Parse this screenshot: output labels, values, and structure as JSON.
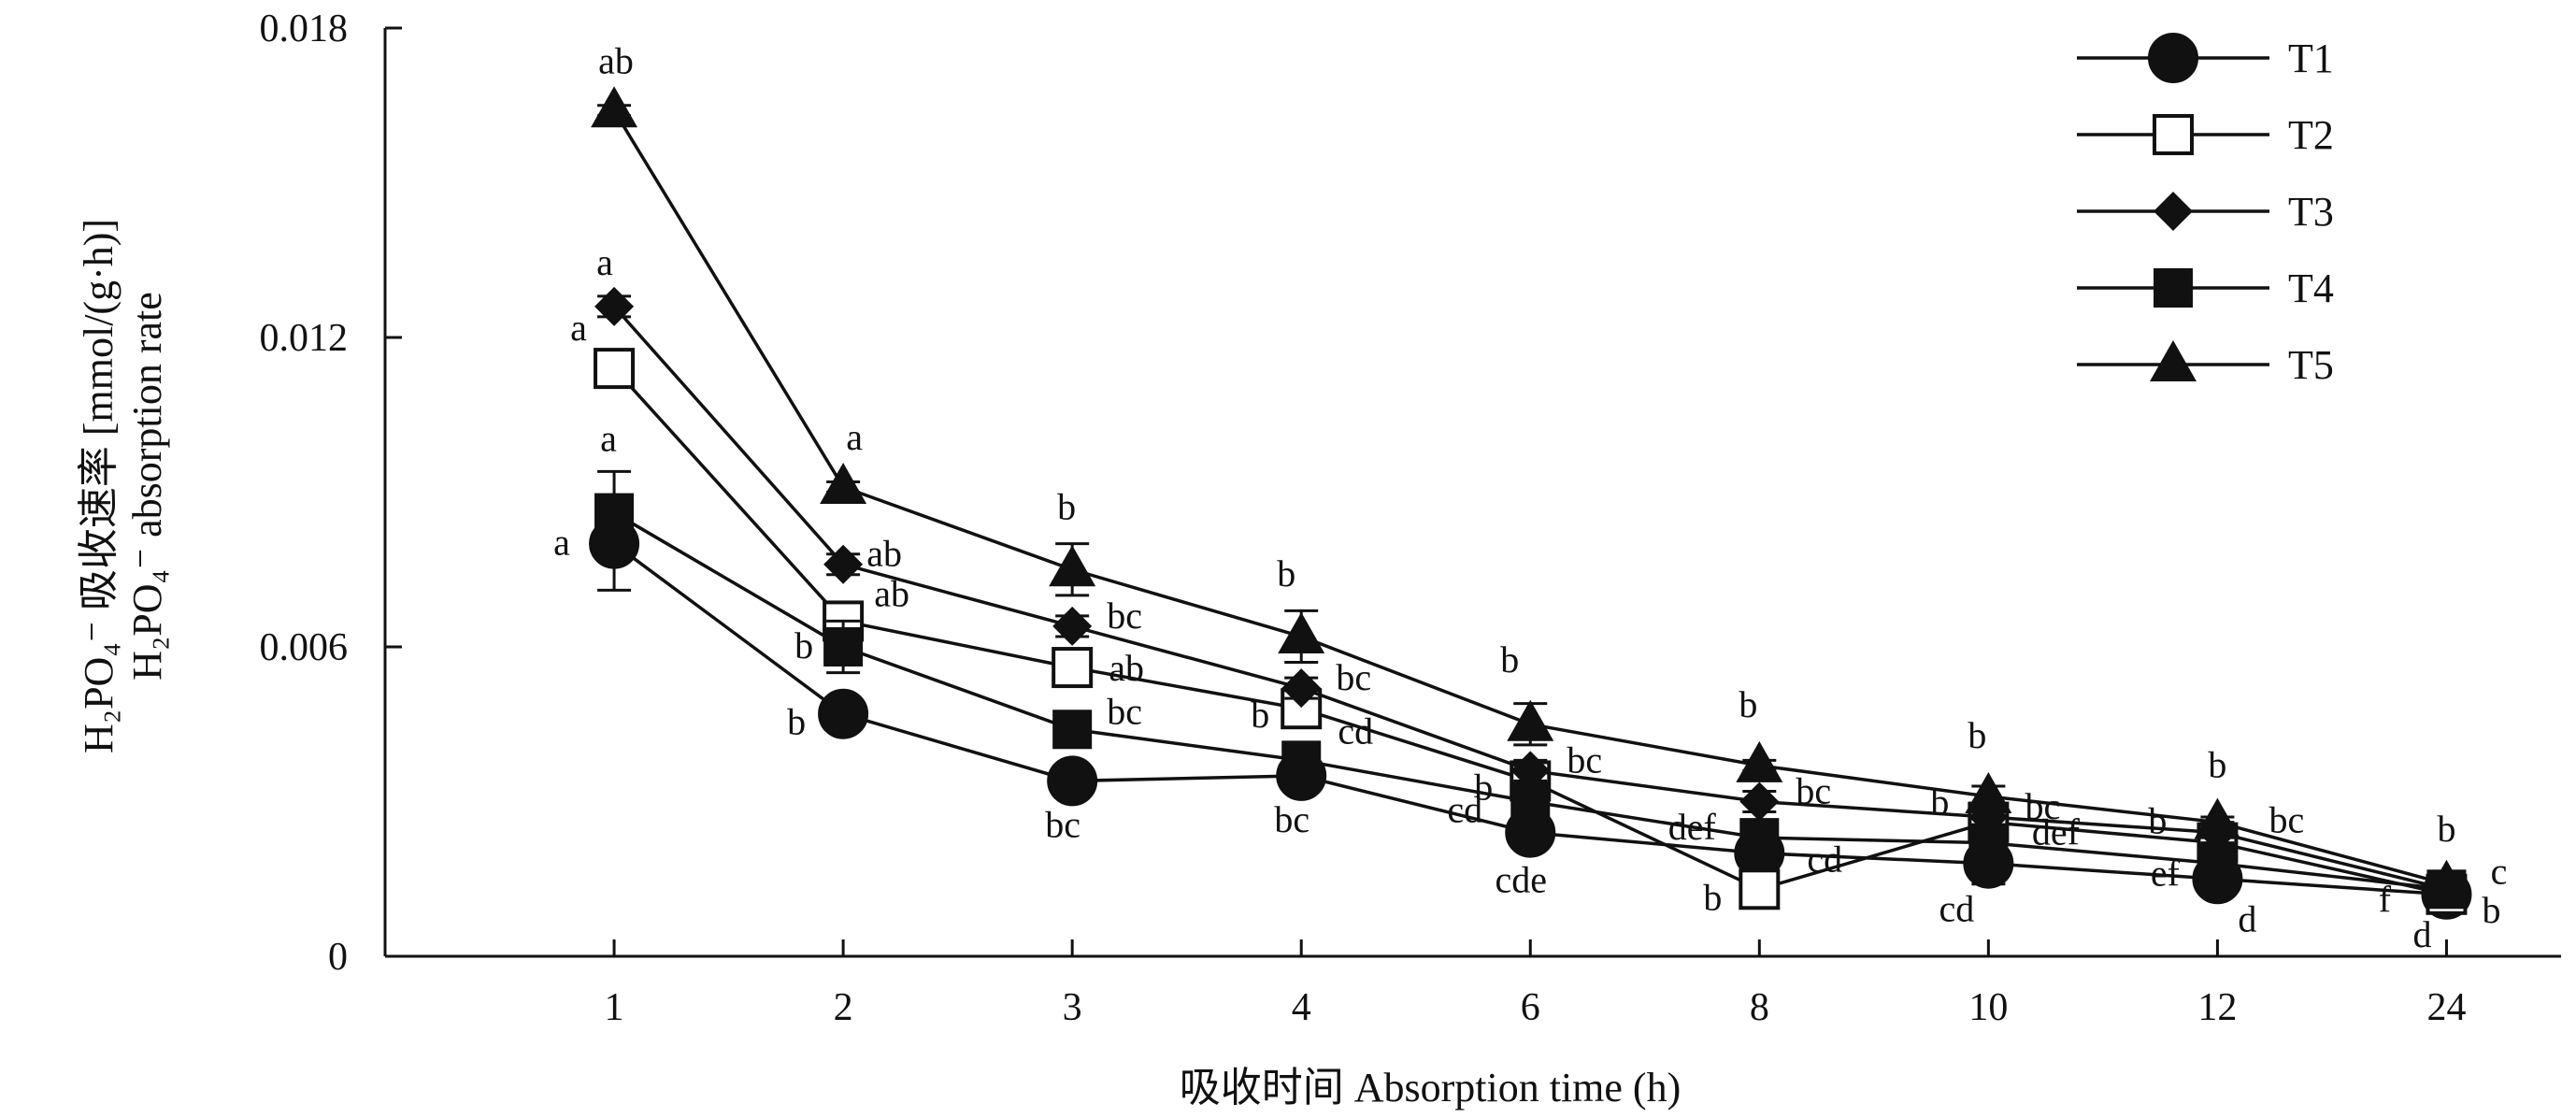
{
  "chart_data": {
    "type": "line",
    "x": [
      "1",
      "2",
      "3",
      "4",
      "6",
      "8",
      "10",
      "12",
      "24"
    ],
    "xlabel": "吸收时间 Absorption time (h)",
    "ylabel_line1": "H₂PO₄⁻ 吸收速率 [mmol/(g·h)]",
    "ylabel_line2": "H₂PO₄⁻ absorption rate",
    "ylim": [
      0,
      0.018
    ],
    "yticks": [
      "0",
      "0.006",
      "0.012",
      "0.018"
    ],
    "legend_position": "top-right",
    "grid": false,
    "series": [
      {
        "name": "T1",
        "marker": "circle-filled",
        "values": [
          0.008,
          0.0047,
          0.0034,
          0.0035,
          0.0024,
          0.002,
          0.0018,
          0.0015,
          0.0012
        ],
        "errors": [
          0.0009,
          0.0002,
          0.0002,
          0.0002,
          0.0002,
          0.0002,
          0.0004,
          0.0002,
          0.0001
        ],
        "labels": [
          "a",
          "b",
          "bc",
          "bc",
          "cde",
          "cd",
          "cd",
          "d",
          "d"
        ]
      },
      {
        "name": "T2",
        "marker": "square-open",
        "values": [
          0.0114,
          0.0065,
          0.0056,
          0.0048,
          0.0034,
          0.0013,
          0.0026,
          0.0022,
          0.0012
        ],
        "errors": [
          0.0003,
          0.0003,
          0.0003,
          0.0002,
          0.0002,
          0.0002,
          0.0003,
          0.0002,
          0.0001
        ],
        "labels": [
          "a",
          "ab",
          "ab",
          "b",
          "b",
          "b",
          "b",
          "b",
          "b"
        ]
      },
      {
        "name": "T3",
        "marker": "diamond-filled",
        "values": [
          0.0126,
          0.0076,
          0.0064,
          0.0052,
          0.0036,
          0.003,
          0.0027,
          0.0024,
          0.0013
        ],
        "errors": [
          0.0002,
          0.0002,
          0.0002,
          0.0002,
          0.0002,
          0.0002,
          0.0002,
          0.0002,
          0.0001
        ],
        "labels": [
          "a",
          "ab",
          "bc",
          "bc",
          "bc",
          "bc",
          "bc",
          "bc",
          "c"
        ]
      },
      {
        "name": "T4",
        "marker": "square-filled",
        "values": [
          0.0086,
          0.006,
          0.0044,
          0.0038,
          0.003,
          0.0023,
          0.0022,
          0.0018,
          0.0013
        ],
        "errors": [
          0.0008,
          0.0005,
          0.0002,
          0.0002,
          0.0003,
          0.0002,
          0.0002,
          0.0002,
          0.0001
        ],
        "labels": [
          "a",
          "b",
          "bc",
          "cd",
          "cd",
          "def",
          "def",
          "ef",
          "f"
        ]
      },
      {
        "name": "T5",
        "marker": "triangle-filled",
        "values": [
          0.0164,
          0.0091,
          0.0075,
          0.0062,
          0.0045,
          0.0037,
          0.0031,
          0.0026,
          0.0014
        ],
        "errors": [
          0.0001,
          0.0001,
          0.0005,
          0.0005,
          0.0004,
          0.0001,
          0.0002,
          0.0001,
          0.0001
        ],
        "labels": [
          "ab",
          "a",
          "b",
          "b",
          "b",
          "b",
          "b",
          "b",
          "b"
        ]
      }
    ]
  }
}
